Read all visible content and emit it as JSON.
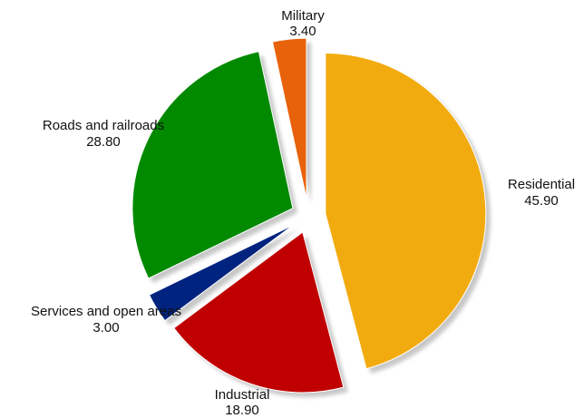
{
  "chart_data": {
    "type": "pie",
    "title": "",
    "exploded": true,
    "shadow": true,
    "start_angle_deg": 0,
    "direction": "clockwise",
    "slices": [
      {
        "label": "Residential",
        "value": 45.9,
        "value_text": "45.90",
        "color": "#F2AB0F"
      },
      {
        "label": "Industrial",
        "value": 18.9,
        "value_text": "18.90",
        "color": "#C00000"
      },
      {
        "label": "Services and open areas",
        "value": 3.0,
        "value_text": "3.00",
        "color": "#00237F"
      },
      {
        "label": "Roads and railroads",
        "value": 28.8,
        "value_text": "28.80",
        "color": "#018A00"
      },
      {
        "label": "Military",
        "value": 3.4,
        "value_text": "3.40",
        "color": "#E8620B"
      }
    ]
  }
}
